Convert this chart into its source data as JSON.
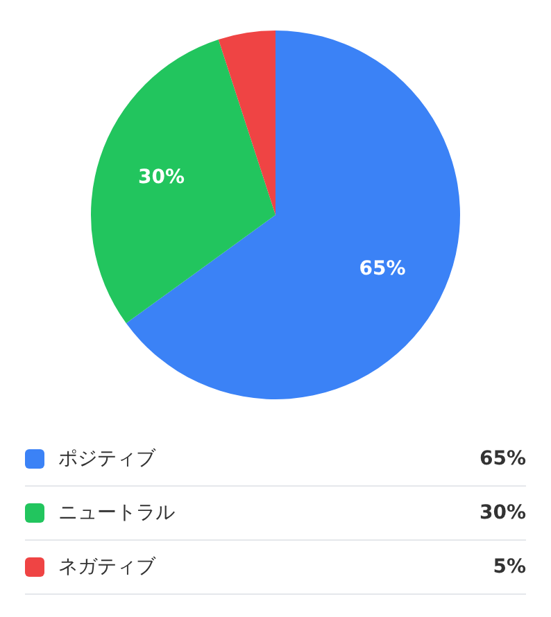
{
  "chart_data": {
    "type": "pie",
    "categories": [
      "ポジティブ",
      "ニュートラル",
      "ネガティブ"
    ],
    "values": [
      65,
      30,
      5
    ],
    "colors": [
      "#3b82f6",
      "#22c55e",
      "#ef4444"
    ],
    "value_labels": [
      "65%",
      "30%",
      "5%"
    ],
    "data_labels": true,
    "legend": "bottom"
  }
}
